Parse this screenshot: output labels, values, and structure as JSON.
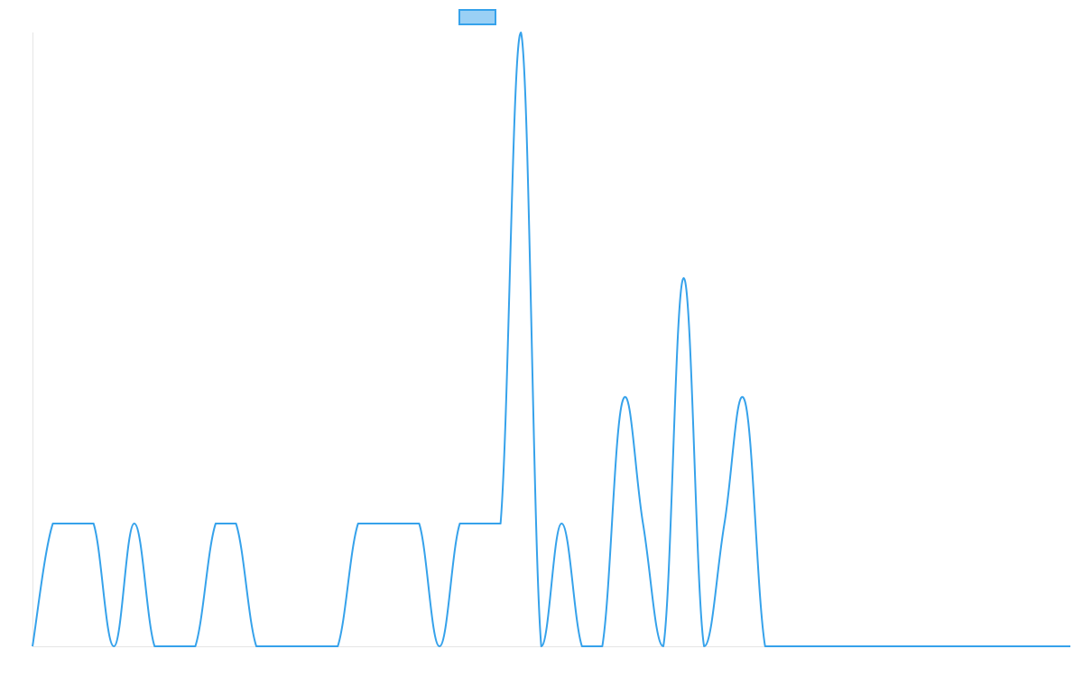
{
  "chart_data": {
    "type": "line",
    "series": [
      {
        "values": [
          0,
          3,
          3,
          3,
          0,
          3,
          0,
          0,
          0,
          3,
          3,
          0,
          0,
          0,
          0,
          0,
          3,
          3,
          3,
          3,
          0,
          3,
          3,
          3,
          15,
          0,
          3,
          0,
          0,
          6,
          3,
          0,
          9,
          0,
          3,
          6,
          0,
          0,
          0,
          0,
          0,
          0,
          0,
          0,
          0,
          0,
          0,
          0,
          0,
          0,
          0,
          0
        ]
      }
    ],
    "legend": {
      "position": "top",
      "label": ""
    },
    "ylim": [
      0,
      15
    ],
    "grid": false,
    "colors": {
      "line": "#36a2eb",
      "legend_fill": "#9ad0f5",
      "axis": "#e5e5e5"
    }
  }
}
